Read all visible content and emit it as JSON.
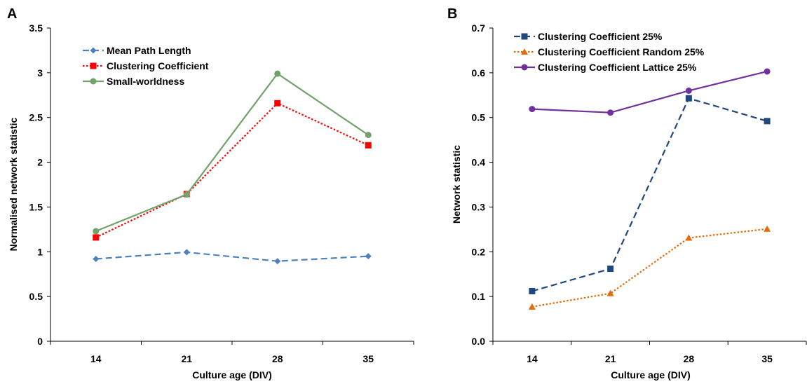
{
  "chart_data": [
    {
      "panel_label": "A",
      "type": "line",
      "categories": [
        "14",
        "21",
        "28",
        "35"
      ],
      "xlabel": "Culture age (DIV)",
      "ylabel": "Normalised network statistic",
      "ylim": [
        0,
        3.5
      ],
      "yticks": [
        "0",
        "0.5",
        "1",
        "1.5",
        "2",
        "2.5",
        "3",
        "3.5"
      ],
      "grid": false,
      "legend_position": "top-left",
      "series": [
        {
          "name": "Mean Path Length",
          "values": [
            0.92,
            0.995,
            0.895,
            0.95
          ],
          "color": "#4f81bd",
          "dash": "dashed",
          "marker": "diamond"
        },
        {
          "name": "Clustering Coefficient",
          "values": [
            1.16,
            1.645,
            2.66,
            2.19
          ],
          "color": "#ff0000",
          "dash": "dotted",
          "marker": "square"
        },
        {
          "name": "Small-worldness",
          "values": [
            1.23,
            1.64,
            2.99,
            2.305
          ],
          "color": "#70a26a",
          "dash": "solid",
          "marker": "circle"
        }
      ]
    },
    {
      "panel_label": "B",
      "type": "line",
      "categories": [
        "14",
        "21",
        "28",
        "35"
      ],
      "xlabel": "Culture age (DIV)",
      "ylabel": "Network statistic",
      "ylim": [
        0,
        0.7
      ],
      "yticks": [
        "0.0",
        "0.1",
        "0.2",
        "0.3",
        "0.4",
        "0.5",
        "0.6",
        "0.7"
      ],
      "grid": false,
      "legend_position": "top-left",
      "series": [
        {
          "name": "Clustering Coefficient 25%",
          "values": [
            0.112,
            0.162,
            0.543,
            0.492
          ],
          "color": "#1f497d",
          "dash": "dashed",
          "marker": "square"
        },
        {
          "name": "Clustering Coefficient Random 25%",
          "values": [
            0.077,
            0.107,
            0.231,
            0.251
          ],
          "color": "#e36c09",
          "dash": "dotted",
          "marker": "triangle"
        },
        {
          "name": "Clustering Coefficient Lattice 25%",
          "values": [
            0.519,
            0.511,
            0.56,
            0.603
          ],
          "color": "#7030a0",
          "dash": "solid",
          "marker": "circle"
        }
      ]
    }
  ]
}
